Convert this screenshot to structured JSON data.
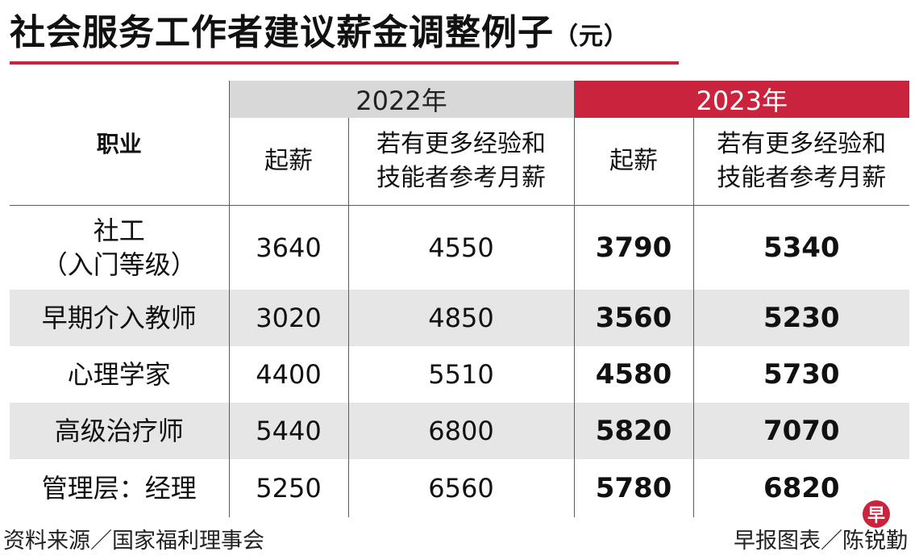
{
  "title": "社会服务工作者建议薪金调整例子",
  "unit": "（元）",
  "header": {
    "occupation": "职业",
    "year_2022": "2022年",
    "year_2023": "2023年",
    "start_pay": "起薪",
    "experienced_line1": "若有更多经验和",
    "experienced_line2": "技能者参考月薪"
  },
  "rows": [
    {
      "occupation_line1": "社工",
      "occupation_line2": "（入门等级）",
      "s2022": "3640",
      "e2022": "4550",
      "s2023": "3790",
      "e2023": "5340"
    },
    {
      "occupation_line1": "早期介入教师",
      "s2022": "3020",
      "e2022": "4850",
      "s2023": "3560",
      "e2023": "5230"
    },
    {
      "occupation_line1": "心理学家",
      "s2022": "4400",
      "e2022": "5510",
      "s2023": "4580",
      "e2023": "5730"
    },
    {
      "occupation_line1": "高级治疗师",
      "s2022": "5440",
      "e2022": "6800",
      "s2023": "5820",
      "e2023": "7070"
    },
    {
      "occupation_line1": "管理层：经理",
      "s2022": "5250",
      "e2022": "6560",
      "s2023": "5780",
      "e2023": "6820"
    }
  ],
  "footer": {
    "source": "资料来源／国家福利理事会",
    "credit": "早报图表／陈锐勤",
    "logo_glyph": "早"
  },
  "colors": {
    "accent": "#c9233e",
    "header_grey": "#d8d8d8",
    "row_shade": "#e6e6e6"
  }
}
